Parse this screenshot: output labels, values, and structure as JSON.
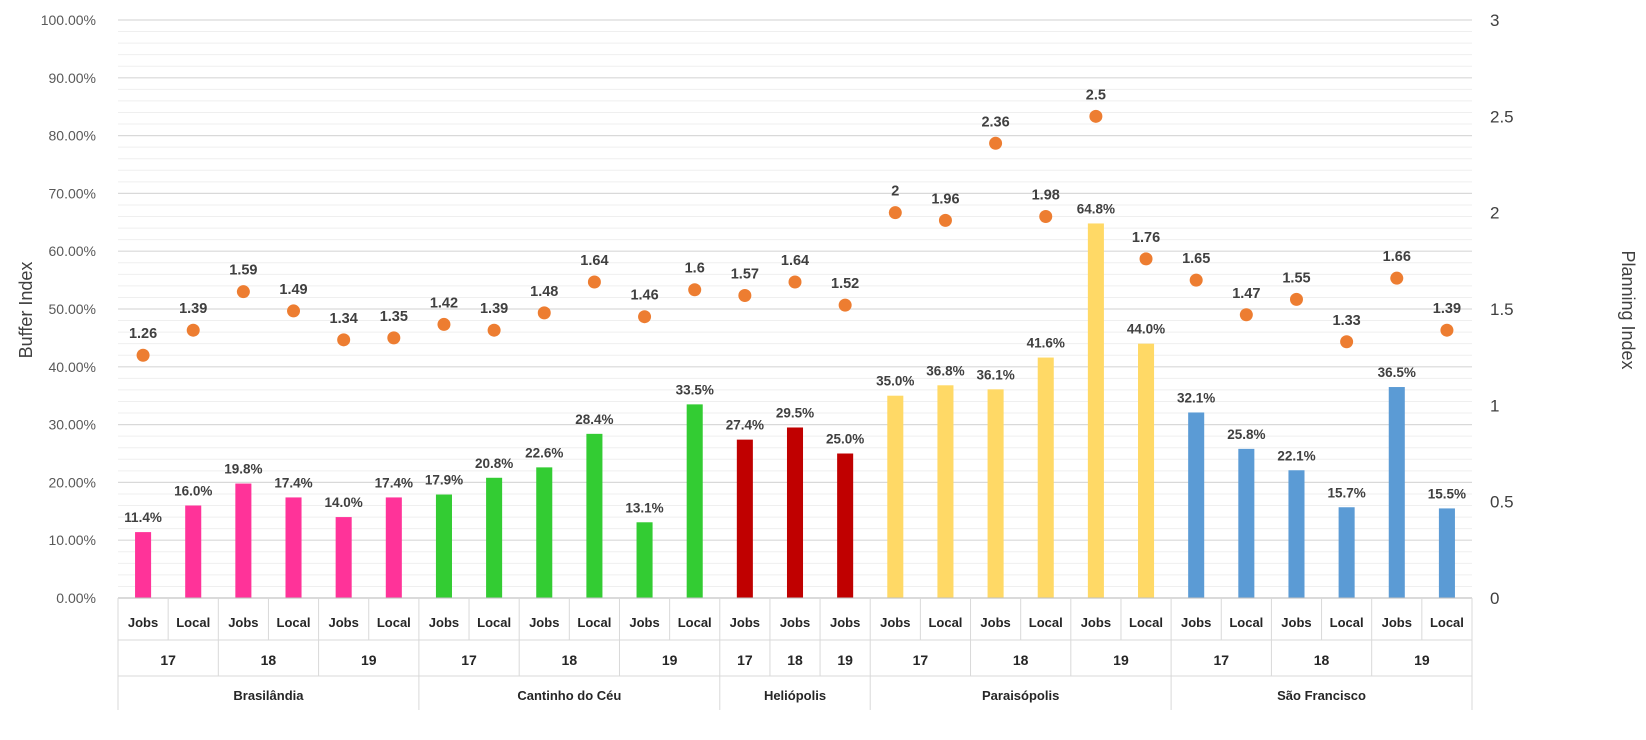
{
  "chart_data": {
    "type": "bar",
    "title": "",
    "ylabel": "Buffer Index",
    "y2label": "Planning Index",
    "ylim": [
      0,
      100
    ],
    "y2lim": [
      0,
      3
    ],
    "yticks": [
      "0.00%",
      "10.00%",
      "20.00%",
      "30.00%",
      "40.00%",
      "50.00%",
      "60.00%",
      "70.00%",
      "80.00%",
      "90.00%",
      "100.00%"
    ],
    "y2ticks": [
      "0",
      "0.5",
      "1",
      "1.5",
      "2",
      "2.5",
      "3"
    ],
    "grid": true,
    "groups": [
      {
        "name": "Brasilândia",
        "color": "#FF3399",
        "years": [
          {
            "year": "17",
            "items": [
              {
                "type": "Jobs",
                "buffer": 11.4,
                "buffer_label": "11.4%",
                "planning": 1.26,
                "planning_label": "1.26"
              },
              {
                "type": "Local",
                "buffer": 16.0,
                "buffer_label": "16.0%",
                "planning": 1.39,
                "planning_label": "1.39"
              }
            ]
          },
          {
            "year": "18",
            "items": [
              {
                "type": "Jobs",
                "buffer": 19.8,
                "buffer_label": "19.8%",
                "planning": 1.59,
                "planning_label": "1.59"
              },
              {
                "type": "Local",
                "buffer": 17.4,
                "buffer_label": "17.4%",
                "planning": 1.49,
                "planning_label": "1.49"
              }
            ]
          },
          {
            "year": "19",
            "items": [
              {
                "type": "Jobs",
                "buffer": 14.0,
                "buffer_label": "14.0%",
                "planning": 1.34,
                "planning_label": "1.34"
              },
              {
                "type": "Local",
                "buffer": 17.4,
                "buffer_label": "17.4%",
                "planning": 1.35,
                "planning_label": "1.35"
              }
            ]
          }
        ]
      },
      {
        "name": "Cantinho do Céu",
        "color": "#33CC33",
        "years": [
          {
            "year": "17",
            "items": [
              {
                "type": "Jobs",
                "buffer": 17.9,
                "buffer_label": "17.9%",
                "planning": 1.42,
                "planning_label": "1.42"
              },
              {
                "type": "Local",
                "buffer": 20.8,
                "buffer_label": "20.8%",
                "planning": 1.39,
                "planning_label": "1.39"
              }
            ]
          },
          {
            "year": "18",
            "items": [
              {
                "type": "Jobs",
                "buffer": 22.6,
                "buffer_label": "22.6%",
                "planning": 1.48,
                "planning_label": "1.48"
              },
              {
                "type": "Local",
                "buffer": 28.4,
                "buffer_label": "28.4%",
                "planning": 1.64,
                "planning_label": "1.64"
              }
            ]
          },
          {
            "year": "19",
            "items": [
              {
                "type": "Jobs",
                "buffer": 13.1,
                "buffer_label": "13.1%",
                "planning": 1.46,
                "planning_label": "1.46"
              },
              {
                "type": "Local",
                "buffer": 33.5,
                "buffer_label": "33.5%",
                "planning": 1.6,
                "planning_label": "1.6"
              }
            ]
          }
        ]
      },
      {
        "name": "Heliópolis",
        "color": "#C00000",
        "years": [
          {
            "year": "17",
            "items": [
              {
                "type": "Jobs",
                "buffer": 27.4,
                "buffer_label": "27.4%",
                "planning": 1.57,
                "planning_label": "1.57"
              }
            ]
          },
          {
            "year": "18",
            "items": [
              {
                "type": "Jobs",
                "buffer": 29.5,
                "buffer_label": "29.5%",
                "planning": 1.64,
                "planning_label": "1.64"
              }
            ]
          },
          {
            "year": "19",
            "items": [
              {
                "type": "Jobs",
                "buffer": 25.0,
                "buffer_label": "25.0%",
                "planning": 1.52,
                "planning_label": "1.52"
              }
            ]
          }
        ]
      },
      {
        "name": "Paraisópolis",
        "color": "#FFD966",
        "years": [
          {
            "year": "17",
            "items": [
              {
                "type": "Jobs",
                "buffer": 35.0,
                "buffer_label": "35.0%",
                "planning": 2.0,
                "planning_label": "2"
              },
              {
                "type": "Local",
                "buffer": 36.8,
                "buffer_label": "36.8%",
                "planning": 1.96,
                "planning_label": "1.96"
              }
            ]
          },
          {
            "year": "18",
            "items": [
              {
                "type": "Jobs",
                "buffer": 36.1,
                "buffer_label": "36.1%",
                "planning": 2.36,
                "planning_label": "2.36"
              },
              {
                "type": "Local",
                "buffer": 41.6,
                "buffer_label": "41.6%",
                "planning": 1.98,
                "planning_label": "1.98"
              }
            ]
          },
          {
            "year": "19",
            "items": [
              {
                "type": "Jobs",
                "buffer": 64.8,
                "buffer_label": "64.8%",
                "planning": 2.5,
                "planning_label": "2.5"
              },
              {
                "type": "Local",
                "buffer": 44.0,
                "buffer_label": "44.0%",
                "planning": 1.76,
                "planning_label": "1.76"
              }
            ]
          }
        ]
      },
      {
        "name": "São Francisco",
        "color": "#5B9BD5",
        "years": [
          {
            "year": "17",
            "items": [
              {
                "type": "Jobs",
                "buffer": 32.1,
                "buffer_label": "32.1%",
                "planning": 1.65,
                "planning_label": "1.65"
              },
              {
                "type": "Local",
                "buffer": 25.8,
                "buffer_label": "25.8%",
                "planning": 1.47,
                "planning_label": "1.47"
              }
            ]
          },
          {
            "year": "18",
            "items": [
              {
                "type": "Jobs",
                "buffer": 22.1,
                "buffer_label": "22.1%",
                "planning": 1.55,
                "planning_label": "1.55"
              },
              {
                "type": "Local",
                "buffer": 15.7,
                "buffer_label": "15.7%",
                "planning": 1.33,
                "planning_label": "1.33"
              }
            ]
          },
          {
            "year": "19",
            "items": [
              {
                "type": "Jobs",
                "buffer": 36.5,
                "buffer_label": "36.5%",
                "planning": 1.66,
                "planning_label": "1.66"
              },
              {
                "type": "Local",
                "buffer": 15.5,
                "buffer_label": "15.5%",
                "planning": 1.39,
                "planning_label": "1.39"
              }
            ]
          }
        ]
      }
    ],
    "planning_marker_color": "#ED7D31",
    "grid_color": "#D9D9D9"
  }
}
